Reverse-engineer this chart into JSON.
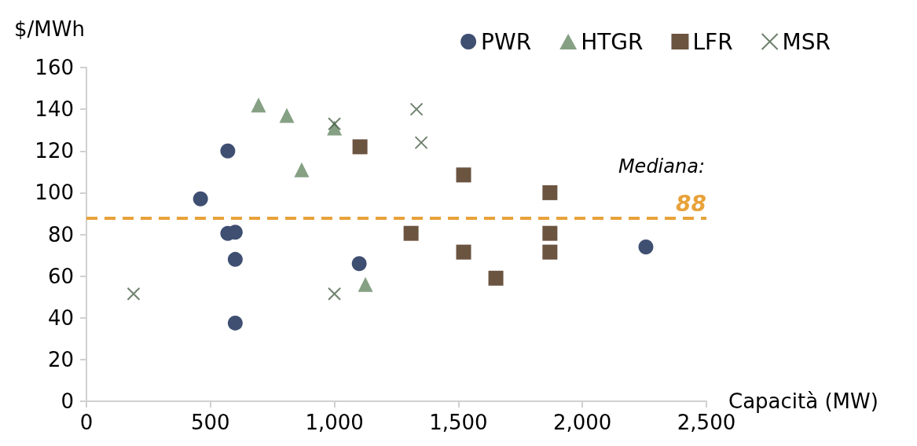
{
  "chart_data": {
    "type": "scatter",
    "ylabel": "$/MWh",
    "xlabel": "Capacità (MW)",
    "xlim": [
      0,
      2500
    ],
    "xticks": [
      0,
      {
        "value": 500,
        "label": "500"
      },
      {
        "value": 1000,
        "label": "1,000"
      },
      {
        "value": 1500,
        "label": "1,500"
      },
      {
        "value": 2000,
        "label": "2,000"
      },
      {
        "value": 2500,
        "label": "2,500"
      }
    ],
    "ylim": [
      0,
      160
    ],
    "yticks": [
      0,
      20,
      40,
      60,
      80,
      100,
      120,
      140,
      160
    ],
    "grid": false,
    "legend": "top right",
    "series": [
      {
        "name": "PWR",
        "color": "#3f4f72",
        "marker": "circle",
        "x": [
          460,
          570,
          570,
          600,
          600,
          600,
          1100,
          2256
        ],
        "values": [
          97,
          120,
          80.5,
          81,
          68,
          37.5,
          66,
          74
        ]
      },
      {
        "name": "HTGR",
        "color": "#86a084",
        "marker": "triangle",
        "x": [
          694,
          808,
          1000,
          868,
          1125
        ],
        "values": [
          142,
          137,
          131,
          111,
          56
        ]
      },
      {
        "name": "LFR",
        "color": "#6b5440",
        "marker": "square",
        "x": [
          1103,
          1521,
          1869,
          1309,
          1521,
          1869,
          1869,
          1651
        ],
        "values": [
          122,
          108.5,
          100,
          80.5,
          71.5,
          80.5,
          71.5,
          59
        ]
      },
      {
        "name": "MSR",
        "color": "#4a6248",
        "marker": "cross",
        "x": [
          190,
          1000,
          1000,
          1331,
          1350
        ],
        "values": [
          51.5,
          133,
          51.5,
          140,
          124
        ]
      }
    ],
    "ref_lines": [
      {
        "axis": "y",
        "value": 88,
        "label": "88",
        "color": "#e8a23a",
        "line_style": "dashed"
      }
    ],
    "annotations": [
      "Mediana:"
    ]
  }
}
